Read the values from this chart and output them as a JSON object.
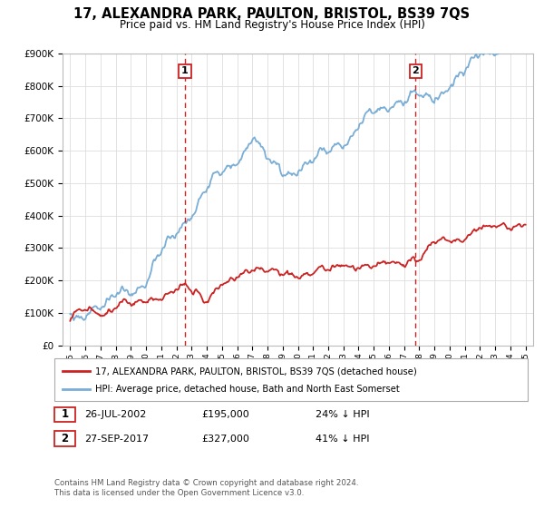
{
  "title": "17, ALEXANDRA PARK, PAULTON, BRISTOL, BS39 7QS",
  "subtitle": "Price paid vs. HM Land Registry's House Price Index (HPI)",
  "legend_line1": "17, ALEXANDRA PARK, PAULTON, BRISTOL, BS39 7QS (detached house)",
  "legend_line2": "HPI: Average price, detached house, Bath and North East Somerset",
  "sale1_date": "26-JUL-2002",
  "sale1_price": 195000,
  "sale1_label": "24% ↓ HPI",
  "sale1_year": 2002.56,
  "sale2_date": "27-SEP-2017",
  "sale2_price": 327000,
  "sale2_label": "41% ↓ HPI",
  "sale2_year": 2017.75,
  "ylim": [
    0,
    900000
  ],
  "xlim_left": 1994.5,
  "xlim_right": 2025.5,
  "hpi_color": "#7aaed6",
  "price_color": "#cc2222",
  "vline_color": "#cc2222",
  "footer": "Contains HM Land Registry data © Crown copyright and database right 2024.\nThis data is licensed under the Open Government Licence v3.0.",
  "bg_color": "#ffffff",
  "grid_color": "#dddddd"
}
